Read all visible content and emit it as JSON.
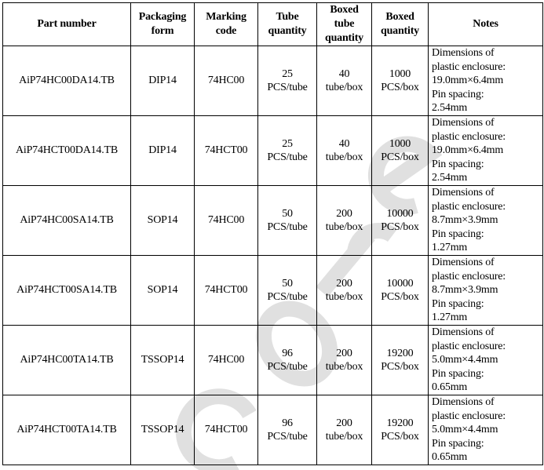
{
  "headers": [
    "Part number",
    "Packaging form",
    "Marking code",
    "Tube quantity",
    "Boxed tube quantity",
    "Boxed quantity",
    "Notes"
  ],
  "rows": [
    {
      "part": "AiP74HC00DA14.TB",
      "pkg": "DIP14",
      "mark": "74HC00",
      "tube": [
        "25",
        "PCS/tube"
      ],
      "boxtube": [
        "40",
        "tube/box"
      ],
      "boxed": [
        "1000",
        "PCS/box"
      ],
      "notes": [
        "Dimensions of",
        "plastic enclosure:",
        "19.0mm×6.4mm",
        "Pin spacing:",
        "2.54mm"
      ]
    },
    {
      "part": "AiP74HCT00DA14.TB",
      "pkg": "DIP14",
      "mark": "74HCT00",
      "tube": [
        "25",
        "PCS/tube"
      ],
      "boxtube": [
        "40",
        "tube/box"
      ],
      "boxed": [
        "1000",
        "PCS/box"
      ],
      "notes": [
        "Dimensions of",
        "plastic enclosure:",
        "19.0mm×6.4mm",
        "Pin spacing:",
        "2.54mm"
      ]
    },
    {
      "part": "AiP74HC00SA14.TB",
      "pkg": "SOP14",
      "mark": "74HC00",
      "tube": [
        "50",
        "PCS/tube"
      ],
      "boxtube": [
        "200",
        "tube/box"
      ],
      "boxed": [
        "10000",
        "PCS/box"
      ],
      "notes": [
        "Dimensions of",
        "plastic enclosure:",
        "8.7mm×3.9mm",
        "Pin spacing:",
        "1.27mm"
      ]
    },
    {
      "part": "AiP74HCT00SA14.TB",
      "pkg": "SOP14",
      "mark": "74HCT00",
      "tube": [
        "50",
        "PCS/tube"
      ],
      "boxtube": [
        "200",
        "tube/box"
      ],
      "boxed": [
        "10000",
        "PCS/box"
      ],
      "notes": [
        "Dimensions of",
        "plastic enclosure:",
        "8.7mm×3.9mm",
        "Pin spacing:",
        "1.27mm"
      ]
    },
    {
      "part": "AiP74HC00TA14.TB",
      "pkg": "TSSOP14",
      "mark": "74HC00",
      "tube": [
        "96",
        "PCS/tube"
      ],
      "boxtube": [
        "200",
        "tube/box"
      ],
      "boxed": [
        "19200",
        "PCS/box"
      ],
      "notes": [
        "Dimensions of",
        "plastic enclosure:",
        "5.0mm×4.4mm",
        "Pin spacing:",
        "0.65mm"
      ]
    },
    {
      "part": "AiP74HCT00TA14.TB",
      "pkg": "TSSOP14",
      "mark": "74HCT00",
      "tube": [
        "96",
        "PCS/tube"
      ],
      "boxtube": [
        "200",
        "tube/box"
      ],
      "boxed": [
        "19200",
        "PCS/box"
      ],
      "notes": [
        "Dimensions of",
        "plastic enclosure:",
        "5.0mm×4.4mm",
        "Pin spacing:",
        "0.65mm"
      ]
    }
  ],
  "watermark": {
    "text": "core",
    "color": "#d9d9d9"
  }
}
